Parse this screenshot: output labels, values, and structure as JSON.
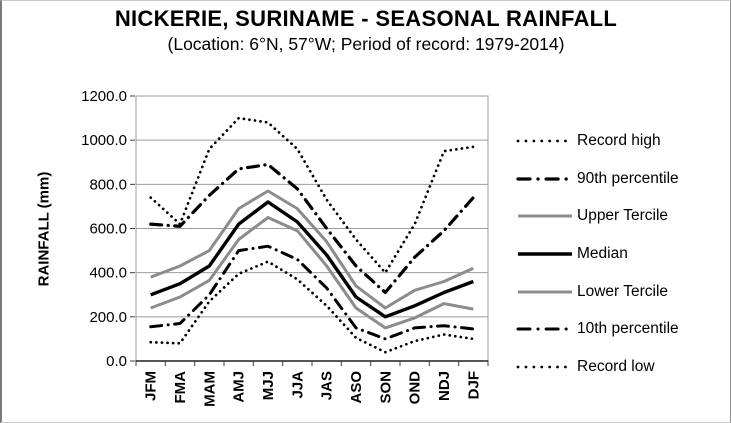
{
  "chart_data": {
    "type": "line",
    "title": "NICKERIE, SURINAME - SEASONAL RAINFALL",
    "subtitle": "(Location: 6°N, 57°W; Period of record: 1979-2014)",
    "ylabel": "RAINFALL (mm)",
    "xlabel": "",
    "unit": "mm",
    "categories": [
      "JFM",
      "FMA",
      "MAM",
      "AMJ",
      "MJJ",
      "JJA",
      "JAS",
      "ASO",
      "SON",
      "OND",
      "NDJ",
      "DJF"
    ],
    "y_axis": {
      "min": 0,
      "max": 1200,
      "step": 200,
      "tick_labels": [
        "0.0",
        "200.0",
        "400.0",
        "600.0",
        "800.0",
        "1000.0",
        "1200.0"
      ]
    },
    "grid": "horizontal",
    "legend_position": "right",
    "colors": {
      "grid": "#9b9b9b",
      "tick": "#404040",
      "axis_line": "#1f1f1f",
      "text": "#000000",
      "series_black": "#000000",
      "series_gray": "#8c8c8c"
    },
    "series": [
      {
        "name": "Record high",
        "style": "dotted",
        "color": "#000000",
        "width": 2.7,
        "values": [
          740,
          620,
          960,
          1100,
          1080,
          960,
          730,
          550,
          400,
          620,
          950,
          970
        ]
      },
      {
        "name": "90th percentile",
        "style": "dashdot",
        "color": "#000000",
        "width": 3.2,
        "values": [
          620,
          610,
          750,
          870,
          890,
          780,
          600,
          430,
          310,
          470,
          590,
          740
        ]
      },
      {
        "name": "Upper Tercile",
        "style": "solid",
        "color": "#8c8c8c",
        "width": 3,
        "values": [
          380,
          430,
          500,
          690,
          770,
          690,
          540,
          340,
          240,
          320,
          360,
          420
        ]
      },
      {
        "name": "Median",
        "style": "solid",
        "color": "#000000",
        "width": 3.4,
        "values": [
          300,
          350,
          430,
          620,
          720,
          630,
          480,
          290,
          200,
          250,
          310,
          360
        ]
      },
      {
        "name": "Lower Tercile",
        "style": "solid",
        "color": "#8c8c8c",
        "width": 3,
        "values": [
          240,
          290,
          365,
          550,
          650,
          590,
          430,
          240,
          150,
          195,
          260,
          235
        ]
      },
      {
        "name": "10th percentile",
        "style": "dashdot",
        "color": "#000000",
        "width": 3,
        "values": [
          155,
          170,
          300,
          500,
          520,
          460,
          330,
          150,
          100,
          150,
          160,
          145
        ]
      },
      {
        "name": "Record low",
        "style": "dotted",
        "color": "#000000",
        "width": 2.7,
        "values": [
          85,
          80,
          270,
          395,
          450,
          370,
          250,
          105,
          40,
          90,
          120,
          100
        ]
      }
    ]
  }
}
